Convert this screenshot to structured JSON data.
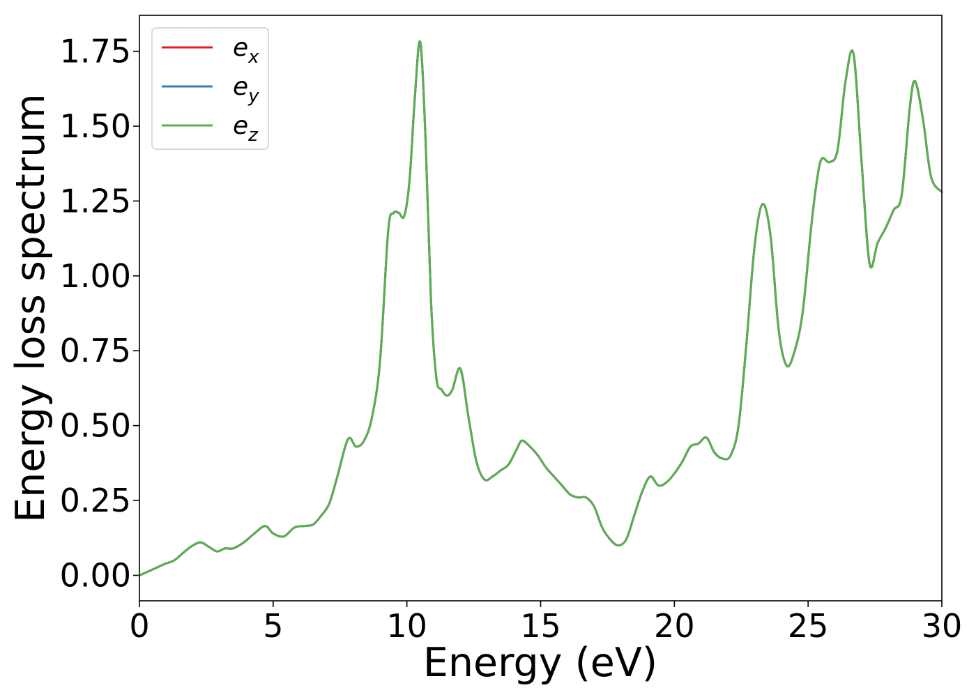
{
  "chart_data": {
    "type": "line",
    "xlabel": "Energy (eV)",
    "ylabel": "Energy loss spectrum",
    "xlim": [
      0,
      30
    ],
    "ylim": [
      -0.085,
      1.87
    ],
    "xticks": [
      0,
      5,
      10,
      15,
      20,
      25,
      30
    ],
    "xtick_labels": [
      "0",
      "5",
      "10",
      "15",
      "20",
      "25",
      "30"
    ],
    "yticks": [
      0.0,
      0.25,
      0.5,
      0.75,
      1.0,
      1.25,
      1.5,
      1.75
    ],
    "ytick_labels": [
      "0.00",
      "0.25",
      "0.50",
      "0.75",
      "1.00",
      "1.25",
      "1.50",
      "1.75"
    ],
    "grid": false,
    "legend_position": "top-left",
    "x": [
      0,
      0.5,
      1.0,
      1.3,
      1.7,
      2.0,
      2.3,
      2.6,
      2.9,
      3.2,
      3.5,
      3.9,
      4.3,
      4.7,
      5.0,
      5.4,
      5.8,
      6.2,
      6.5,
      6.8,
      7.1,
      7.4,
      7.8,
      8.1,
      8.4,
      8.7,
      9.0,
      9.3,
      9.5,
      9.7,
      9.9,
      10.1,
      10.3,
      10.5,
      10.7,
      10.9,
      11.1,
      11.3,
      11.5,
      11.7,
      12.0,
      12.3,
      12.6,
      12.9,
      13.2,
      13.5,
      13.8,
      14.1,
      14.3,
      14.6,
      14.9,
      15.2,
      15.5,
      15.8,
      16.1,
      16.4,
      16.7,
      17.0,
      17.3,
      17.6,
      17.9,
      18.2,
      18.5,
      18.8,
      19.1,
      19.4,
      19.7,
      20.0,
      20.3,
      20.6,
      20.9,
      21.2,
      21.5,
      21.8,
      22.1,
      22.4,
      22.7,
      23.0,
      23.3,
      23.6,
      23.9,
      24.2,
      24.5,
      24.8,
      25.1,
      25.3,
      25.5,
      25.8,
      26.1,
      26.4,
      26.7,
      27.0,
      27.3,
      27.6,
      27.9,
      28.2,
      28.5,
      28.8,
      29.0,
      29.3,
      29.6,
      30.0
    ],
    "series": [
      {
        "name": "e_x",
        "label_base": "e",
        "label_sub": "x",
        "color": "#e41a1c",
        "values": [
          0.0,
          0.02,
          0.04,
          0.05,
          0.08,
          0.1,
          0.11,
          0.095,
          0.08,
          0.09,
          0.09,
          0.11,
          0.14,
          0.165,
          0.14,
          0.13,
          0.16,
          0.165,
          0.17,
          0.2,
          0.24,
          0.33,
          0.455,
          0.43,
          0.45,
          0.53,
          0.72,
          1.15,
          1.21,
          1.21,
          1.2,
          1.32,
          1.6,
          1.78,
          1.45,
          0.92,
          0.66,
          0.62,
          0.6,
          0.62,
          0.69,
          0.53,
          0.38,
          0.32,
          0.33,
          0.35,
          0.37,
          0.42,
          0.45,
          0.43,
          0.4,
          0.36,
          0.33,
          0.3,
          0.27,
          0.26,
          0.26,
          0.23,
          0.16,
          0.12,
          0.1,
          0.12,
          0.2,
          0.28,
          0.33,
          0.3,
          0.31,
          0.34,
          0.38,
          0.43,
          0.44,
          0.46,
          0.41,
          0.39,
          0.4,
          0.5,
          0.78,
          1.1,
          1.24,
          1.13,
          0.82,
          0.7,
          0.75,
          0.88,
          1.15,
          1.3,
          1.39,
          1.38,
          1.42,
          1.65,
          1.74,
          1.38,
          1.04,
          1.11,
          1.16,
          1.22,
          1.27,
          1.56,
          1.65,
          1.52,
          1.33,
          1.28
        ]
      },
      {
        "name": "e_y",
        "label_base": "e",
        "label_sub": "y",
        "color": "#377eb8",
        "values": [
          0.0,
          0.02,
          0.04,
          0.05,
          0.08,
          0.1,
          0.11,
          0.095,
          0.08,
          0.09,
          0.09,
          0.11,
          0.14,
          0.165,
          0.14,
          0.13,
          0.16,
          0.165,
          0.17,
          0.2,
          0.24,
          0.33,
          0.455,
          0.43,
          0.45,
          0.53,
          0.72,
          1.15,
          1.21,
          1.21,
          1.2,
          1.32,
          1.6,
          1.78,
          1.45,
          0.92,
          0.66,
          0.62,
          0.6,
          0.62,
          0.69,
          0.53,
          0.38,
          0.32,
          0.33,
          0.35,
          0.37,
          0.42,
          0.45,
          0.43,
          0.4,
          0.36,
          0.33,
          0.3,
          0.27,
          0.26,
          0.26,
          0.23,
          0.16,
          0.12,
          0.1,
          0.12,
          0.2,
          0.28,
          0.33,
          0.3,
          0.31,
          0.34,
          0.38,
          0.43,
          0.44,
          0.46,
          0.41,
          0.39,
          0.4,
          0.5,
          0.78,
          1.1,
          1.24,
          1.13,
          0.82,
          0.7,
          0.75,
          0.88,
          1.15,
          1.3,
          1.39,
          1.38,
          1.42,
          1.65,
          1.74,
          1.38,
          1.04,
          1.11,
          1.16,
          1.22,
          1.27,
          1.56,
          1.65,
          1.52,
          1.33,
          1.28
        ]
      },
      {
        "name": "e_z",
        "label_base": "e",
        "label_sub": "z",
        "color": "#5aae4f",
        "values": [
          0.0,
          0.02,
          0.04,
          0.05,
          0.08,
          0.1,
          0.11,
          0.095,
          0.08,
          0.09,
          0.09,
          0.11,
          0.14,
          0.165,
          0.14,
          0.13,
          0.16,
          0.165,
          0.17,
          0.2,
          0.24,
          0.33,
          0.455,
          0.43,
          0.45,
          0.53,
          0.72,
          1.15,
          1.21,
          1.21,
          1.2,
          1.32,
          1.6,
          1.78,
          1.45,
          0.92,
          0.66,
          0.62,
          0.6,
          0.62,
          0.69,
          0.53,
          0.38,
          0.32,
          0.33,
          0.35,
          0.37,
          0.42,
          0.45,
          0.43,
          0.4,
          0.36,
          0.33,
          0.3,
          0.27,
          0.26,
          0.26,
          0.23,
          0.16,
          0.12,
          0.1,
          0.12,
          0.2,
          0.28,
          0.33,
          0.3,
          0.31,
          0.34,
          0.38,
          0.43,
          0.44,
          0.46,
          0.41,
          0.39,
          0.4,
          0.5,
          0.78,
          1.1,
          1.24,
          1.13,
          0.82,
          0.7,
          0.75,
          0.88,
          1.15,
          1.3,
          1.39,
          1.38,
          1.42,
          1.65,
          1.74,
          1.38,
          1.04,
          1.11,
          1.16,
          1.22,
          1.27,
          1.56,
          1.65,
          1.52,
          1.33,
          1.28
        ]
      }
    ]
  }
}
